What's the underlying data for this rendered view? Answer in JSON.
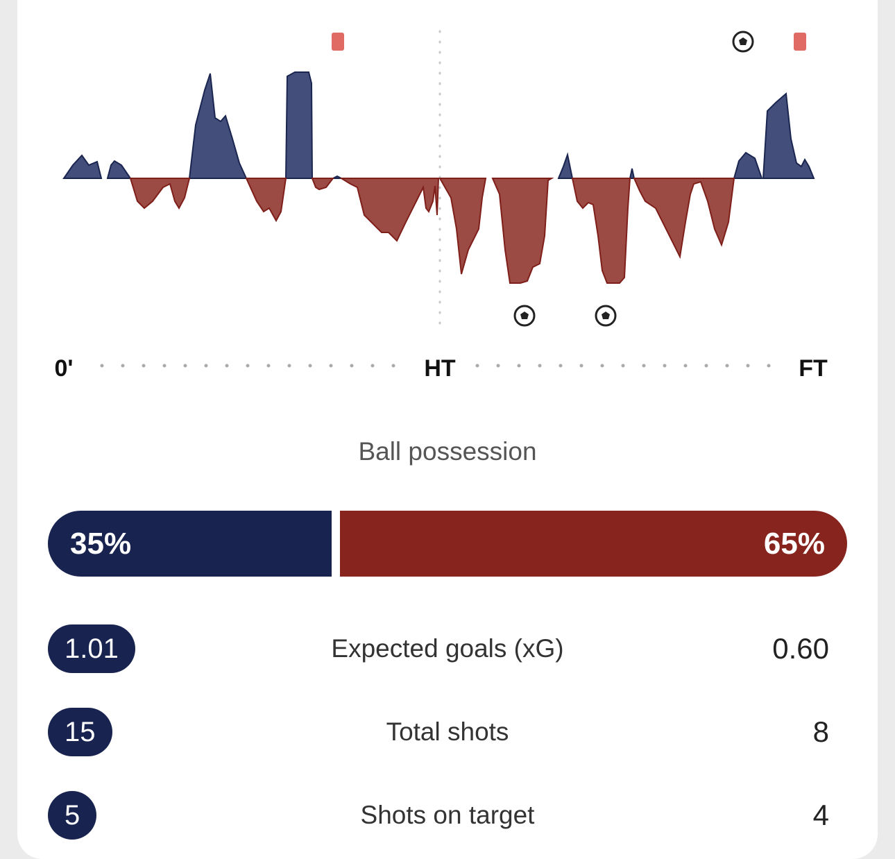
{
  "momentum": {
    "axis_labels": [
      "0'",
      "HT",
      "FT"
    ]
  },
  "possession": {
    "title": "Ball possession",
    "home": {
      "value": 35,
      "label": "35%"
    },
    "away": {
      "value": 65,
      "label": "65%"
    }
  },
  "stats": [
    {
      "label": "Expected goals (xG)",
      "home": "1.01",
      "away": "0.60"
    },
    {
      "label": "Total shots",
      "home": "15",
      "away": "8"
    },
    {
      "label": "Shots on target",
      "home": "5",
      "away": "4"
    }
  ]
}
